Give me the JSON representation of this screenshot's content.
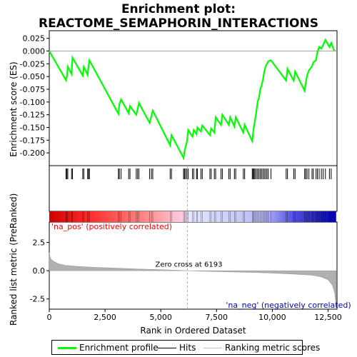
{
  "chart_data": {
    "type": "line",
    "title_line1": "Enrichment plot:",
    "title_line2": "REACTOME_SEMAPHORIN_INTERACTIONS",
    "xlabel": "Rank in Ordered Dataset",
    "ylabel_top": "Enrichment score (ES)",
    "ylabel_bottom": "Ranked list metric (PreRanked)",
    "x_range": [
      0,
      12900
    ],
    "es_ylim": [
      -0.225,
      0.04
    ],
    "es_yticks": [
      0.025,
      0.0,
      -0.025,
      -0.05,
      -0.075,
      -0.1,
      -0.125,
      -0.15,
      -0.175,
      -0.2
    ],
    "es_ytick_labels": [
      "0.025",
      "0.000",
      "-0.025",
      "-0.050",
      "-0.075",
      "-0.100",
      "-0.125",
      "-0.150",
      "-0.175",
      "-0.200"
    ],
    "metric_ylim": [
      -3.4,
      4.3
    ],
    "metric_yticks": [
      2.5,
      0,
      -2.5
    ],
    "metric_ytick_labels": [
      "2.5",
      "0.0",
      "-2.5"
    ],
    "xticks": [
      0,
      2500,
      5000,
      7500,
      10000,
      12500
    ],
    "xtick_labels": [
      "0",
      "2,500",
      "5,000",
      "7,500",
      "10,000",
      "12,500"
    ],
    "es_points": [
      [
        0,
        0.0
      ],
      [
        750,
        -0.057
      ],
      [
        790,
        -0.05
      ],
      [
        830,
        -0.031
      ],
      [
        1000,
        -0.045
      ],
      [
        1040,
        -0.013
      ],
      [
        1500,
        -0.048
      ],
      [
        1550,
        -0.031
      ],
      [
        1720,
        -0.047
      ],
      [
        1760,
        -0.03
      ],
      [
        1800,
        -0.018
      ],
      [
        3100,
        -0.123
      ],
      [
        3140,
        -0.105
      ],
      [
        3220,
        -0.095
      ],
      [
        3560,
        -0.122
      ],
      [
        3620,
        -0.108
      ],
      [
        3900,
        -0.125
      ],
      [
        3960,
        -0.115
      ],
      [
        4020,
        -0.102
      ],
      [
        4500,
        -0.141
      ],
      [
        4580,
        -0.127
      ],
      [
        4640,
        -0.117
      ],
      [
        5420,
        -0.185
      ],
      [
        5480,
        -0.165
      ],
      [
        6020,
        -0.21
      ],
      [
        6060,
        -0.198
      ],
      [
        6110,
        -0.188
      ],
      [
        6170,
        -0.178
      ],
      [
        6230,
        -0.155
      ],
      [
        6420,
        -0.168
      ],
      [
        6480,
        -0.155
      ],
      [
        6600,
        -0.163
      ],
      [
        6640,
        -0.15
      ],
      [
        6800,
        -0.158
      ],
      [
        6860,
        -0.146
      ],
      [
        7200,
        -0.165
      ],
      [
        7260,
        -0.152
      ],
      [
        7400,
        -0.16
      ],
      [
        7460,
        -0.13
      ],
      [
        7700,
        -0.145
      ],
      [
        7760,
        -0.125
      ],
      [
        8050,
        -0.145
      ],
      [
        8110,
        -0.13
      ],
      [
        8300,
        -0.148
      ],
      [
        8360,
        -0.13
      ],
      [
        8700,
        -0.16
      ],
      [
        8760,
        -0.145
      ],
      [
        9100,
        -0.177
      ],
      [
        9140,
        -0.16
      ],
      [
        9180,
        -0.147
      ],
      [
        9220,
        -0.137
      ],
      [
        9280,
        -0.12
      ],
      [
        9340,
        -0.1
      ],
      [
        9400,
        -0.092
      ],
      [
        9460,
        -0.075
      ],
      [
        9520,
        -0.068
      ],
      [
        9580,
        -0.055
      ],
      [
        9640,
        -0.04
      ],
      [
        9700,
        -0.03
      ],
      [
        9760,
        -0.025
      ],
      [
        9820,
        -0.02
      ],
      [
        9940,
        -0.018
      ],
      [
        10620,
        -0.058
      ],
      [
        10680,
        -0.035
      ],
      [
        10960,
        -0.058
      ],
      [
        11020,
        -0.04
      ],
      [
        11450,
        -0.078
      ],
      [
        11500,
        -0.062
      ],
      [
        11560,
        -0.048
      ],
      [
        11640,
        -0.038
      ],
      [
        11780,
        -0.03
      ],
      [
        11840,
        -0.022
      ],
      [
        11960,
        -0.018
      ],
      [
        12020,
        -0.002
      ],
      [
        12100,
        0.008
      ],
      [
        12200,
        0.005
      ],
      [
        12280,
        0.012
      ],
      [
        12380,
        0.022
      ],
      [
        12560,
        0.008
      ],
      [
        12640,
        0.016
      ],
      [
        12780,
        0.0
      ]
    ],
    "hits": [
      750,
      790,
      830,
      1000,
      1040,
      1500,
      1550,
      1720,
      1760,
      1800,
      3100,
      3140,
      3220,
      3560,
      3620,
      3900,
      3960,
      4020,
      4500,
      4580,
      4640,
      5420,
      5480,
      6020,
      6060,
      6110,
      6170,
      6230,
      6420,
      6480,
      6600,
      6640,
      6800,
      6860,
      7200,
      7260,
      7400,
      7460,
      7700,
      7760,
      8050,
      8110,
      8300,
      8360,
      8700,
      8760,
      9100,
      9140,
      9180,
      9220,
      9280,
      9340,
      9400,
      9460,
      9520,
      9580,
      9640,
      9700,
      9760,
      9820,
      9940,
      10620,
      10680,
      10960,
      11020,
      11450,
      11500,
      11560,
      11640,
      11780,
      11840,
      11960,
      12020,
      12100,
      12200,
      12280,
      12380,
      12560,
      12640
    ],
    "metric_curve": [
      [
        0,
        1.6
      ],
      [
        30,
        1.25
      ],
      [
        80,
        1.0
      ],
      [
        200,
        0.82
      ],
      [
        400,
        0.62
      ],
      [
        700,
        0.48
      ],
      [
        1200,
        0.38
      ],
      [
        2000,
        0.3
      ],
      [
        3000,
        0.22
      ],
      [
        4000,
        0.15
      ],
      [
        5000,
        0.09
      ],
      [
        6193,
        0.0
      ],
      [
        7000,
        -0.05
      ],
      [
        8000,
        -0.1
      ],
      [
        9000,
        -0.15
      ],
      [
        10000,
        -0.21
      ],
      [
        11000,
        -0.3
      ],
      [
        11800,
        -0.4
      ],
      [
        12200,
        -0.55
      ],
      [
        12500,
        -0.8
      ],
      [
        12700,
        -1.3
      ],
      [
        12800,
        -2.0
      ],
      [
        12860,
        -3.1
      ]
    ],
    "zero_cross_label": "Zero cross at 6193",
    "zero_cross_rank": 6193,
    "pos_label": "'na_pos' (positively correlated)",
    "neg_label": "'na_neg' (negatively correlated)",
    "legend": [
      {
        "label": "Enrichment profile",
        "color": "#00ff00"
      },
      {
        "label": "Hits",
        "color": "#000000"
      },
      {
        "label": "Ranking metric scores",
        "color": "#c0c0c0"
      }
    ],
    "colors": {
      "es_line": "#00ff00",
      "metric_fill": "#b0b0b0",
      "pos_text": "#ff0000",
      "neg_text": "#0000cc"
    }
  }
}
